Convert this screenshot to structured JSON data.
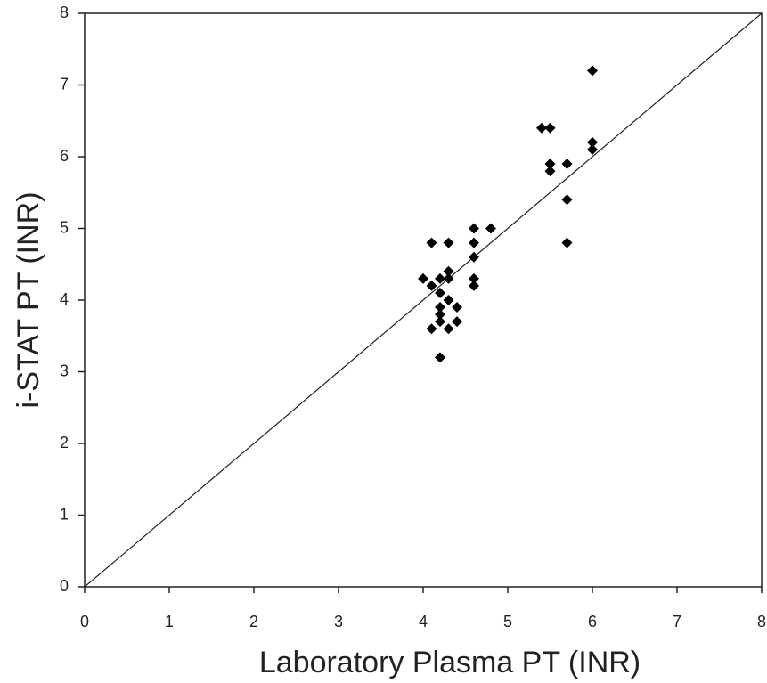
{
  "chart_data": {
    "type": "scatter",
    "x_label": "Laboratory Plasma PT (INR)",
    "y_label": "i-STAT PT (INR)",
    "x": [
      6.0,
      5.4,
      5.5,
      6.0,
      6.0,
      5.5,
      5.7,
      5.5,
      5.7,
      5.7,
      4.6,
      4.8,
      4.1,
      4.3,
      4.6,
      4.6,
      4.3,
      4.0,
      4.2,
      4.3,
      4.6,
      4.1,
      4.6,
      4.2,
      4.3,
      4.4,
      4.2,
      4.2,
      4.2,
      4.4,
      4.1,
      4.3,
      4.2
    ],
    "values": [
      7.2,
      6.4,
      6.4,
      6.2,
      6.1,
      5.9,
      5.9,
      5.8,
      5.4,
      4.8,
      5.0,
      5.0,
      4.8,
      4.8,
      4.8,
      4.6,
      4.4,
      4.3,
      4.3,
      4.3,
      4.3,
      4.2,
      4.2,
      4.1,
      4.0,
      3.9,
      3.9,
      3.8,
      3.7,
      3.7,
      3.6,
      3.6,
      3.2
    ],
    "color": "#000000",
    "marker": "diamond",
    "identity_line": true,
    "xlim": [
      0,
      8
    ],
    "ylim": [
      0,
      8
    ],
    "xticks": [
      0,
      1,
      2,
      3,
      4,
      5,
      6,
      7,
      8
    ],
    "yticks": [
      0,
      1,
      2,
      3,
      4,
      5,
      6,
      7,
      8
    ]
  }
}
